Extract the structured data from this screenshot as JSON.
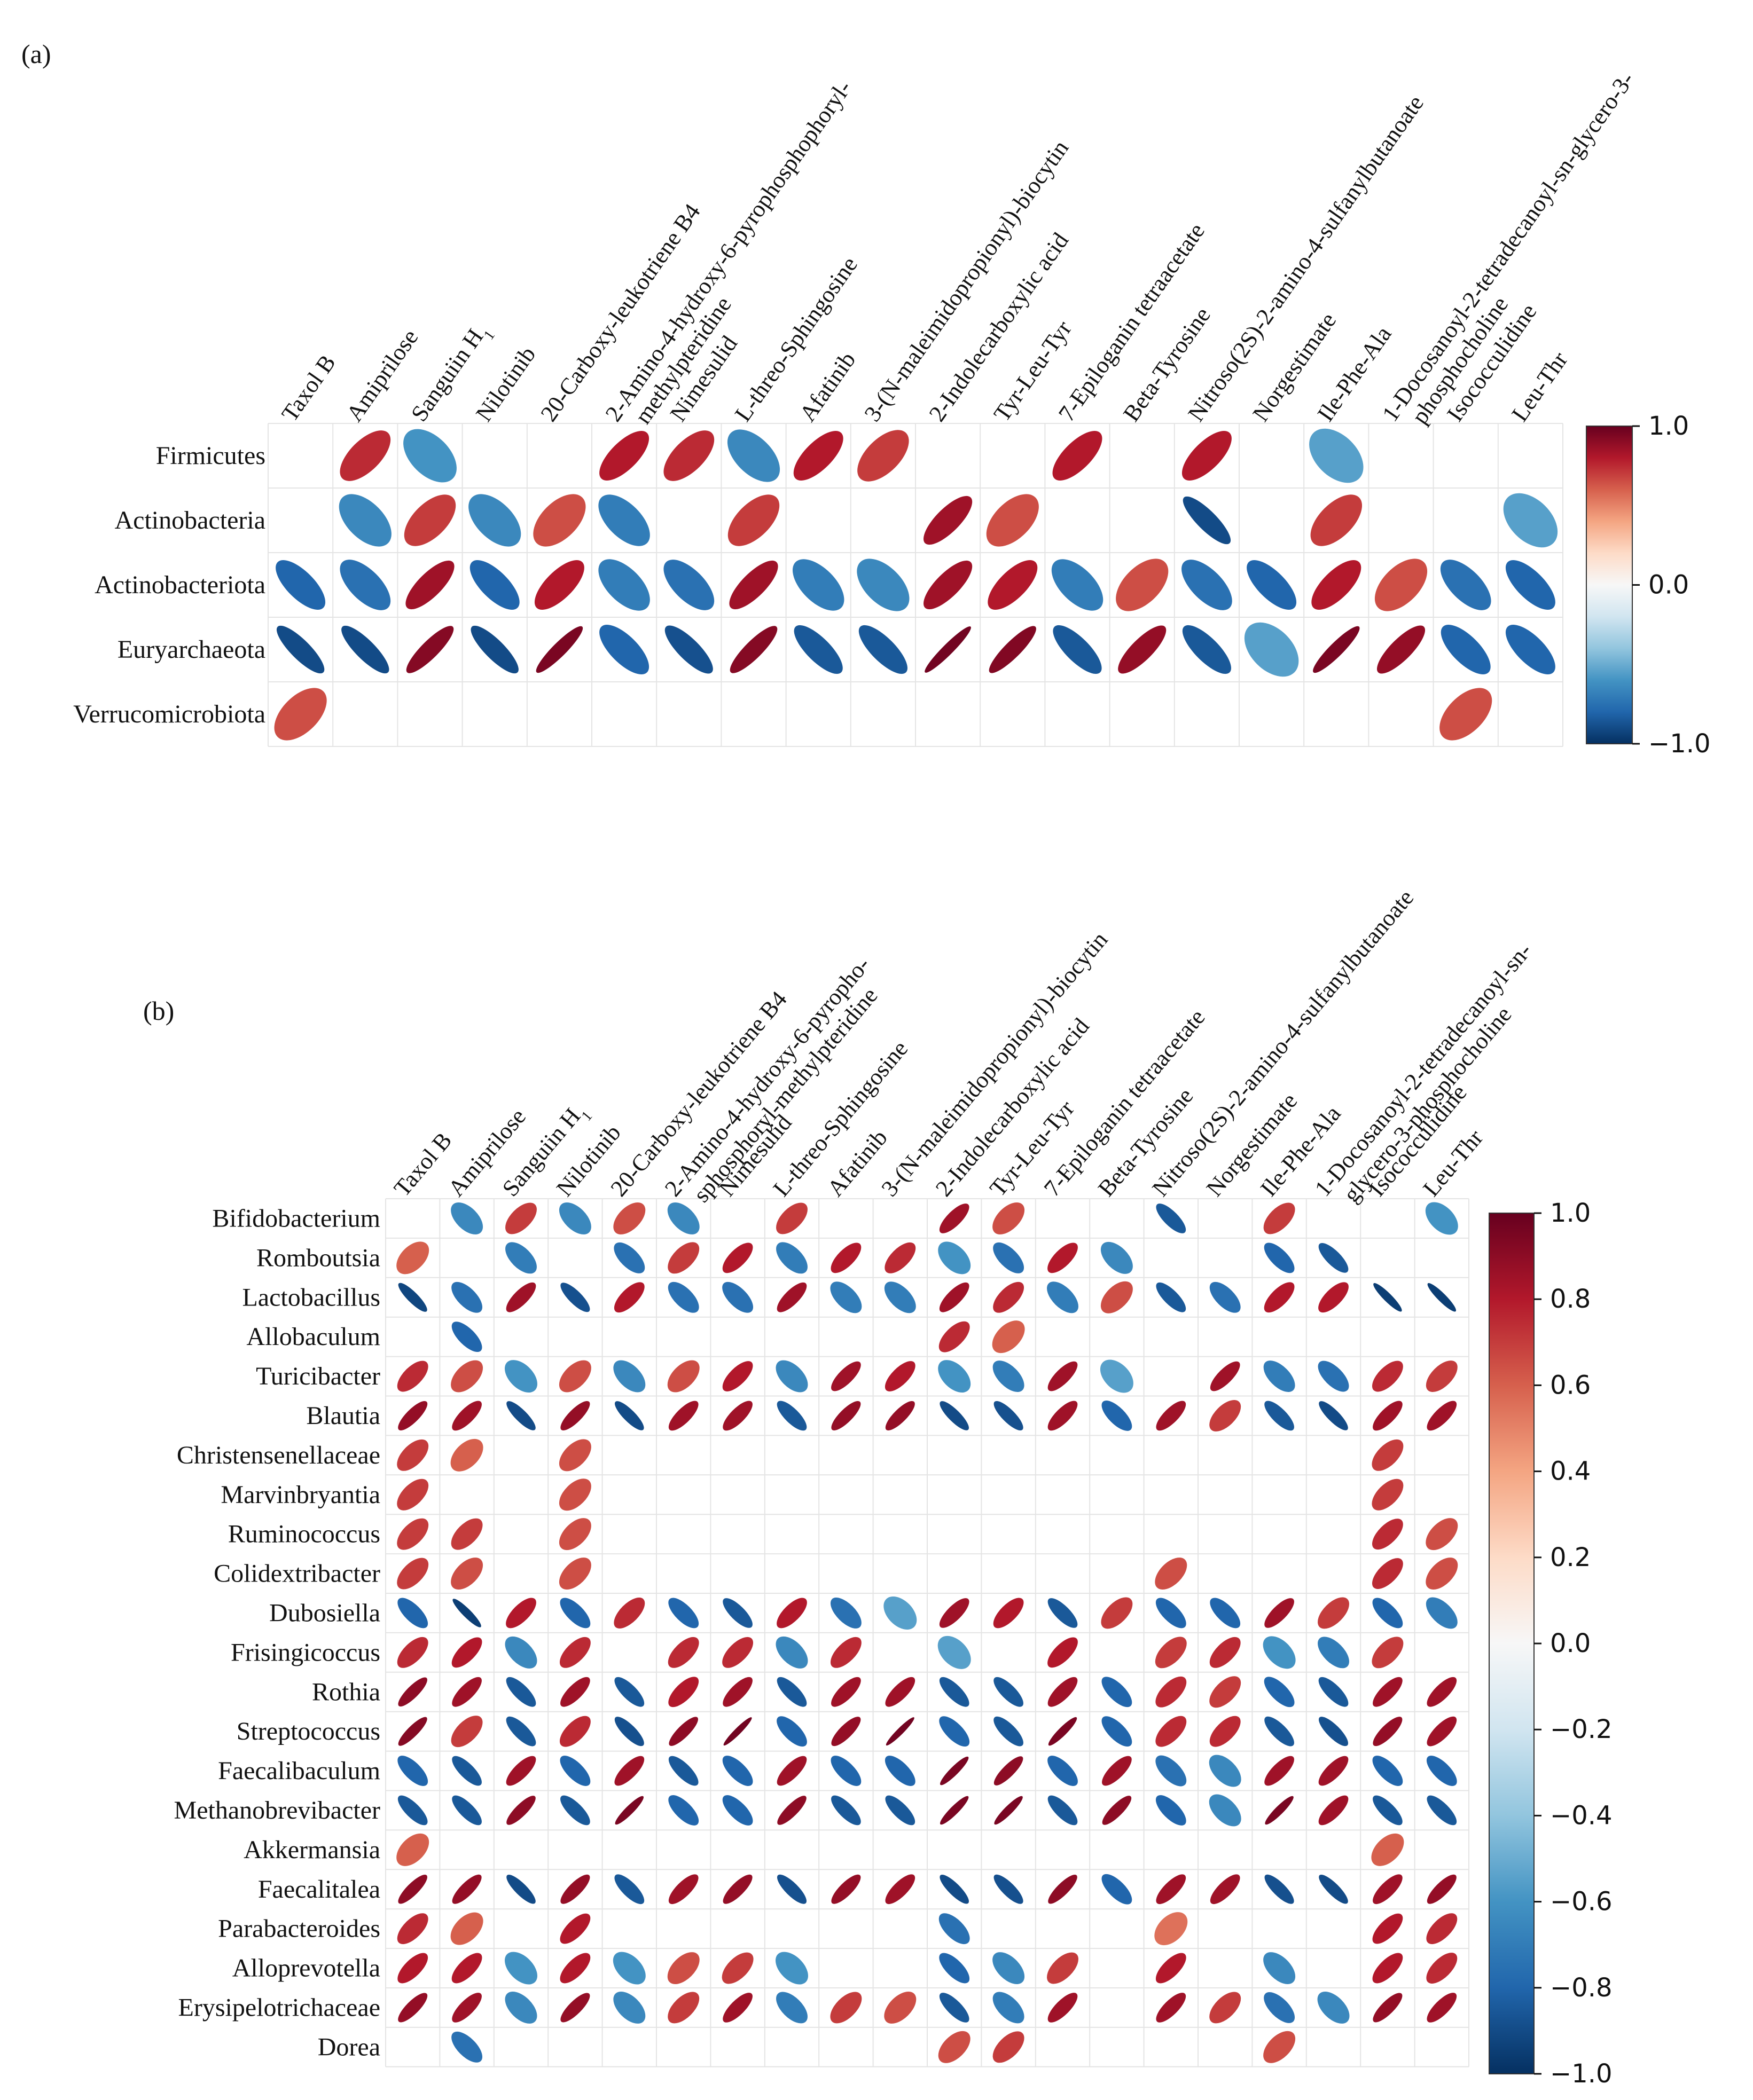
{
  "chart_data": [
    {
      "type": "heatmap",
      "panel_label": "(a)",
      "title": "",
      "rows": [
        "Firmicutes",
        "Actinobacteria",
        "Actinobacteriota",
        "Euryarchaeota",
        "Verrucomicrobiota"
      ],
      "columns": [
        [
          "Taxol B"
        ],
        [
          "Amiprilose"
        ],
        [
          "Sanguiin H",
          "1"
        ],
        [
          "Nilotinib"
        ],
        [
          "20-Carboxy-leukotriene B4"
        ],
        [
          "2-Amino-4-hydroxy-6-pyrophosphophoryl-",
          "methylpteridine"
        ],
        [
          "Nimesulid"
        ],
        [
          "L-threo-Sphingosine"
        ],
        [
          "Afatinib"
        ],
        [
          "3-(N-maleimidopropionyl)-biocytin"
        ],
        [
          "2-Indolecarboxylic acid"
        ],
        [
          "Tyr-Leu-Tyr"
        ],
        [
          "7-Epiloganin tetraacetate"
        ],
        [
          "Beta-Tyrosine"
        ],
        [
          "Nitroso(2S)-2-amino-4-sulfanylbutanoate"
        ],
        [
          "Norgestimate"
        ],
        [
          "Ile-Phe-Ala"
        ],
        [
          "1-Docosanoyl-2-tetradecanoyl-sn-glycero-3-",
          "phosphocholine"
        ],
        [
          "Isococculidine"
        ],
        [
          "Leu-Thr"
        ]
      ],
      "values": [
        [
          null,
          0.75,
          -0.6,
          null,
          null,
          0.8,
          0.75,
          -0.65,
          0.8,
          0.7,
          null,
          null,
          0.8,
          null,
          0.8,
          null,
          -0.55,
          null,
          null,
          null
        ],
        [
          null,
          -0.65,
          0.7,
          -0.65,
          0.65,
          -0.7,
          null,
          0.7,
          null,
          null,
          0.85,
          0.65,
          null,
          null,
          -0.9,
          null,
          0.7,
          null,
          null,
          -0.55
        ],
        [
          -0.8,
          -0.75,
          0.85,
          -0.8,
          0.8,
          -0.7,
          -0.75,
          0.85,
          -0.7,
          -0.65,
          0.85,
          0.8,
          -0.7,
          0.65,
          -0.75,
          -0.8,
          0.8,
          0.65,
          -0.75,
          -0.8
        ],
        [
          -0.9,
          -0.9,
          0.92,
          -0.9,
          0.95,
          -0.8,
          -0.88,
          0.92,
          -0.85,
          -0.85,
          0.97,
          0.93,
          -0.85,
          0.88,
          -0.85,
          -0.55,
          0.95,
          0.88,
          -0.8,
          -0.8
        ],
        [
          0.65,
          null,
          null,
          null,
          null,
          null,
          null,
          null,
          null,
          null,
          null,
          null,
          null,
          null,
          null,
          null,
          null,
          null,
          0.65,
          null
        ]
      ],
      "colorbar": {
        "range": [
          -1.0,
          1.0
        ],
        "tick_labels": [
          "1.0",
          "0.0",
          "−1.0"
        ]
      }
    },
    {
      "type": "heatmap",
      "panel_label": "(b)",
      "title": "",
      "rows": [
        "Bifidobacterium",
        "Romboutsia",
        "Lactobacillus",
        "Allobaculum",
        "Turicibacter",
        "Blautia",
        "Christensenellaceae",
        "Marvinbryantia",
        "Ruminococcus",
        "Colidextribacter",
        "Dubosiella",
        "Frisingicoccus",
        "Rothia",
        "Streptococcus",
        "Faecalibaculum",
        "Methanobrevibacter",
        "Akkermansia",
        "Faecalitalea",
        "Parabacteroides",
        "Alloprevotella",
        "Erysipelotrichaceae",
        "Dorea"
      ],
      "columns": [
        [
          "Taxol B"
        ],
        [
          "Amiprilose"
        ],
        [
          "Sanguiin H",
          "1"
        ],
        [
          "Nilotinib"
        ],
        [
          "20-Carboxy-leukotriene B4"
        ],
        [
          "2-Amino-4-hydroxy-6-pyropho-",
          "sphosphoryl-methylpteridine"
        ],
        [
          "Nimesulid"
        ],
        [
          "L-threo-Sphingosine"
        ],
        [
          "Afatinib"
        ],
        [
          "3-(N-maleimidopropionyl)-biocytin"
        ],
        [
          "2-Indolecarboxylic acid"
        ],
        [
          "Tyr-Leu-Tyr"
        ],
        [
          "7-Epiloganin tetraacetate"
        ],
        [
          "Beta-Tyrosine"
        ],
        [
          "Nitroso(2S)-2-amino-4-sulfanylbutanoate"
        ],
        [
          "Norgestimate"
        ],
        [
          "Ile-Phe-Ala"
        ],
        [
          "1-Docosanoyl-2-tetradecanoyl-sn-",
          "glycero-3-phosphocholine"
        ],
        [
          "Isococculidine"
        ],
        [
          "Leu-Thr"
        ]
      ],
      "values": [
        [
          null,
          -0.65,
          0.7,
          -0.65,
          0.65,
          -0.65,
          null,
          0.7,
          null,
          null,
          0.85,
          0.65,
          null,
          null,
          -0.85,
          null,
          0.7,
          null,
          null,
          -0.6
        ],
        [
          0.6,
          null,
          -0.7,
          null,
          -0.75,
          0.7,
          0.8,
          -0.7,
          0.8,
          0.75,
          -0.6,
          -0.75,
          0.8,
          -0.65,
          null,
          null,
          -0.8,
          -0.85,
          null,
          null
        ],
        [
          -0.92,
          -0.75,
          0.85,
          -0.88,
          0.8,
          -0.75,
          -0.75,
          0.85,
          -0.7,
          -0.7,
          0.85,
          0.75,
          -0.7,
          0.65,
          -0.85,
          -0.75,
          0.8,
          0.8,
          -0.95,
          -0.95
        ],
        [
          null,
          -0.8,
          null,
          null,
          null,
          null,
          null,
          null,
          null,
          null,
          0.75,
          0.6,
          null,
          null,
          null,
          null,
          null,
          null,
          null,
          null
        ],
        [
          0.75,
          0.65,
          -0.6,
          0.65,
          -0.65,
          0.65,
          0.8,
          -0.65,
          0.85,
          0.8,
          -0.6,
          -0.7,
          0.85,
          -0.55,
          null,
          0.85,
          -0.7,
          -0.75,
          0.75,
          0.7
        ],
        [
          0.88,
          0.85,
          -0.9,
          0.88,
          -0.9,
          0.85,
          0.85,
          -0.85,
          0.88,
          0.88,
          -0.9,
          -0.88,
          0.85,
          -0.8,
          0.85,
          0.7,
          -0.85,
          -0.9,
          0.85,
          0.85
        ],
        [
          0.7,
          0.6,
          null,
          0.65,
          null,
          null,
          null,
          null,
          null,
          null,
          null,
          null,
          null,
          null,
          null,
          null,
          null,
          null,
          0.7,
          null
        ],
        [
          0.7,
          null,
          null,
          0.65,
          null,
          null,
          null,
          null,
          null,
          null,
          null,
          null,
          null,
          null,
          null,
          null,
          null,
          null,
          0.7,
          null
        ],
        [
          0.7,
          0.7,
          null,
          0.65,
          null,
          null,
          null,
          null,
          null,
          null,
          null,
          null,
          null,
          null,
          null,
          null,
          null,
          null,
          0.75,
          0.65
        ],
        [
          0.7,
          0.65,
          null,
          0.65,
          null,
          null,
          null,
          null,
          null,
          null,
          null,
          null,
          null,
          null,
          0.65,
          null,
          null,
          null,
          0.75,
          0.65
        ],
        [
          -0.8,
          -0.95,
          0.8,
          -0.8,
          0.75,
          -0.8,
          -0.85,
          0.8,
          -0.75,
          -0.55,
          0.85,
          0.8,
          -0.85,
          0.7,
          -0.8,
          -0.8,
          0.85,
          0.7,
          -0.8,
          -0.7
        ],
        [
          0.75,
          0.8,
          -0.65,
          0.75,
          null,
          0.75,
          0.75,
          -0.65,
          0.75,
          null,
          -0.55,
          null,
          0.8,
          null,
          0.7,
          0.75,
          -0.6,
          -0.7,
          0.7,
          null
        ],
        [
          0.9,
          0.85,
          -0.85,
          0.85,
          -0.85,
          0.8,
          0.85,
          -0.85,
          0.85,
          0.85,
          -0.85,
          -0.85,
          0.85,
          -0.8,
          0.75,
          0.7,
          -0.8,
          -0.85,
          0.85,
          0.85
        ],
        [
          0.92,
          0.7,
          -0.85,
          0.75,
          -0.88,
          0.9,
          0.97,
          -0.8,
          0.88,
          0.97,
          -0.8,
          -0.85,
          0.95,
          -0.8,
          0.75,
          0.75,
          -0.85,
          -0.88,
          0.88,
          0.85
        ],
        [
          -0.8,
          -0.85,
          0.85,
          -0.8,
          0.85,
          -0.85,
          -0.8,
          0.85,
          -0.8,
          -0.8,
          0.95,
          0.9,
          -0.8,
          0.85,
          -0.75,
          -0.65,
          0.85,
          0.85,
          -0.8,
          -0.8
        ],
        [
          -0.85,
          -0.85,
          0.9,
          -0.85,
          0.95,
          -0.8,
          -0.8,
          0.9,
          -0.85,
          -0.85,
          0.95,
          0.95,
          -0.85,
          0.9,
          -0.8,
          -0.65,
          0.95,
          0.85,
          -0.85,
          -0.85
        ],
        [
          0.6,
          null,
          null,
          null,
          null,
          null,
          null,
          null,
          null,
          null,
          null,
          null,
          null,
          null,
          null,
          null,
          null,
          null,
          0.6,
          null
        ],
        [
          0.9,
          0.88,
          -0.9,
          0.88,
          -0.85,
          0.85,
          0.88,
          -0.88,
          0.88,
          0.85,
          -0.9,
          -0.88,
          0.9,
          -0.8,
          0.85,
          0.85,
          -0.88,
          -0.9,
          0.85,
          0.88
        ],
        [
          0.75,
          0.6,
          null,
          0.8,
          null,
          null,
          null,
          null,
          null,
          null,
          -0.75,
          null,
          null,
          null,
          0.55,
          null,
          null,
          null,
          0.8,
          0.75
        ],
        [
          0.8,
          0.8,
          -0.6,
          0.8,
          -0.6,
          0.65,
          0.7,
          -0.6,
          null,
          null,
          -0.8,
          -0.65,
          0.7,
          null,
          0.8,
          null,
          -0.65,
          null,
          0.8,
          0.75
        ],
        [
          0.88,
          0.85,
          -0.65,
          0.88,
          -0.65,
          0.7,
          0.85,
          -0.7,
          0.7,
          0.65,
          -0.85,
          -0.7,
          0.85,
          null,
          0.85,
          0.7,
          -0.75,
          -0.65,
          0.88,
          0.85
        ],
        [
          null,
          -0.75,
          null,
          null,
          null,
          null,
          null,
          null,
          null,
          null,
          0.65,
          0.7,
          null,
          null,
          null,
          null,
          0.65,
          null,
          null,
          null
        ]
      ],
      "colorbar": {
        "range": [
          -1.0,
          1.0
        ],
        "tick_labels": [
          "1.0",
          "0.8",
          "0.6",
          "0.4",
          "0.2",
          "0.0",
          "−0.2",
          "−0.4",
          "−0.6",
          "−0.8",
          "−1.0"
        ]
      }
    }
  ]
}
